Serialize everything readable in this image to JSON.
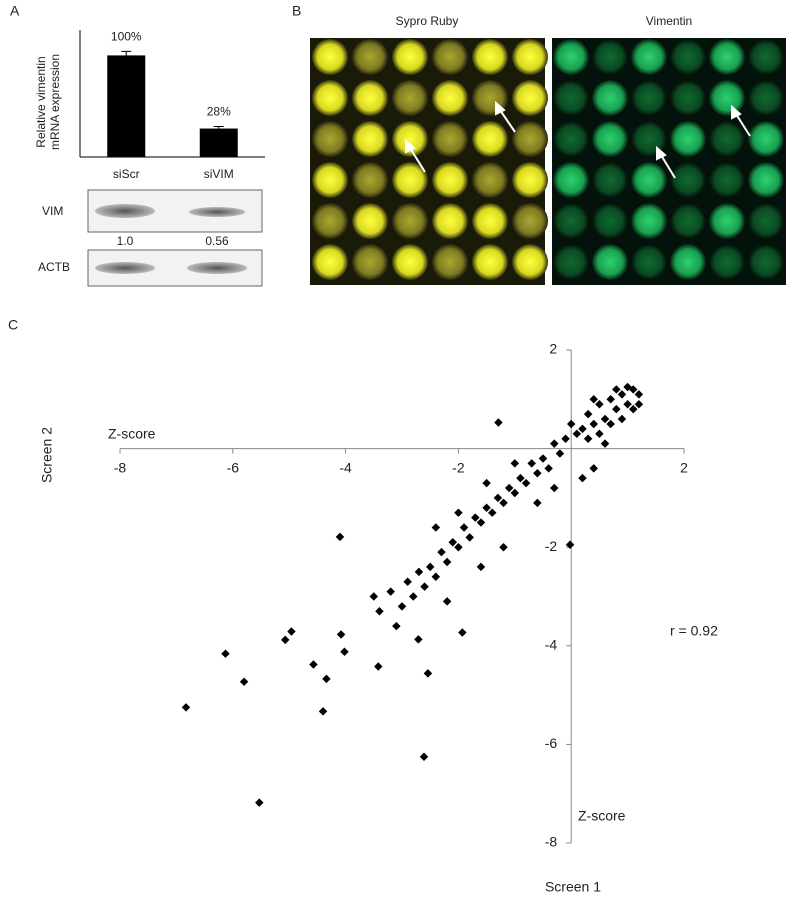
{
  "panel_labels": [
    "A",
    "B",
    "C"
  ],
  "chart_data": [
    {
      "type": "bar",
      "ylabel": "Relative vimentin mRNA expression",
      "categories": [
        "siScr",
        "siVIM"
      ],
      "values": [
        100,
        28
      ],
      "value_labels": [
        "100%",
        "28%"
      ],
      "errors": [
        4,
        2
      ],
      "color": "#000000",
      "ylim": [
        0,
        125
      ]
    },
    {
      "type": "scatter",
      "xlabel": "Screen 1",
      "ylabel": "Screen 2",
      "x_axis_title": "Z-score",
      "y_axis_title": "Z-score",
      "annotation": "r = 0.92",
      "color": "#000000",
      "xlim": [
        -8,
        2
      ],
      "ylim": [
        -8,
        2
      ],
      "xticks": [
        -8,
        -6,
        -4,
        -2,
        2
      ],
      "yticks": [
        2,
        -2,
        -4,
        -6,
        -8
      ],
      "x": [
        0.3,
        0.5,
        0.7,
        0.9,
        1.1,
        1.2,
        0.4,
        0.6,
        0.8,
        1.0,
        0.2,
        0.1,
        -0.1,
        0.0,
        0.3,
        0.5,
        0.7,
        0.9,
        1.1,
        1.2,
        -0.2,
        -0.3,
        -0.5,
        -0.4,
        -0.6,
        -0.7,
        -0.8,
        -0.9,
        -1.0,
        -1.1,
        -1.2,
        -1.3,
        -1.4,
        -1.5,
        -1.6,
        -1.7,
        -1.8,
        -1.9,
        -2.0,
        -2.1,
        -2.2,
        -2.3,
        -2.4,
        -2.5,
        -2.6,
        -2.7,
        -2.8,
        -2.9,
        -3.0,
        -3.2,
        -3.4,
        -3.5,
        -1.0,
        -1.5,
        -0.6,
        0.2,
        0.4,
        -2.0,
        -1.2,
        -2.4,
        -1.6,
        0.6,
        -0.3,
        -3.1,
        -2.2,
        0.8,
        1.0,
        0.4,
        -6.83,
        -5.53,
        -6.13,
        -5.8,
        -4.4,
        -2.61,
        -4.1,
        -4.96,
        -5.07,
        -4.57,
        -4.34,
        -4.08,
        -4.02,
        -3.42,
        -2.54,
        -2.71,
        -1.93,
        -1.29,
        -0.02
      ],
      "y": [
        0.7,
        0.9,
        1.0,
        1.1,
        1.2,
        1.1,
        0.5,
        0.6,
        0.8,
        0.9,
        0.4,
        0.3,
        0.2,
        0.5,
        0.2,
        0.3,
        0.5,
        0.6,
        0.8,
        0.9,
        -0.1,
        0.1,
        -0.2,
        -0.4,
        -0.5,
        -0.3,
        -0.7,
        -0.6,
        -0.9,
        -0.8,
        -1.1,
        -1.0,
        -1.3,
        -1.2,
        -1.5,
        -1.4,
        -1.8,
        -1.6,
        -2.0,
        -1.9,
        -2.3,
        -2.1,
        -2.6,
        -2.4,
        -2.8,
        -2.5,
        -3.0,
        -2.7,
        -3.2,
        -2.9,
        -3.3,
        -3.0,
        -0.3,
        -0.7,
        -1.1,
        -0.6,
        -0.4,
        -1.3,
        -2.0,
        -1.6,
        -2.4,
        0.1,
        -0.8,
        -3.6,
        -3.1,
        1.2,
        1.25,
        1.0,
        -5.25,
        -7.18,
        -4.16,
        -4.73,
        -5.33,
        -6.25,
        -1.79,
        -3.71,
        -3.88,
        -4.38,
        -4.67,
        -3.77,
        -4.12,
        -4.42,
        -4.56,
        -3.87,
        -3.73,
        0.53,
        -1.95
      ]
    }
  ],
  "blot": {
    "rows": [
      "VIM",
      "ACTB"
    ],
    "quant": [
      "1.0",
      "0.56"
    ]
  },
  "images": {
    "titles": [
      "Sypro Ruby",
      "Vimentin"
    ]
  }
}
